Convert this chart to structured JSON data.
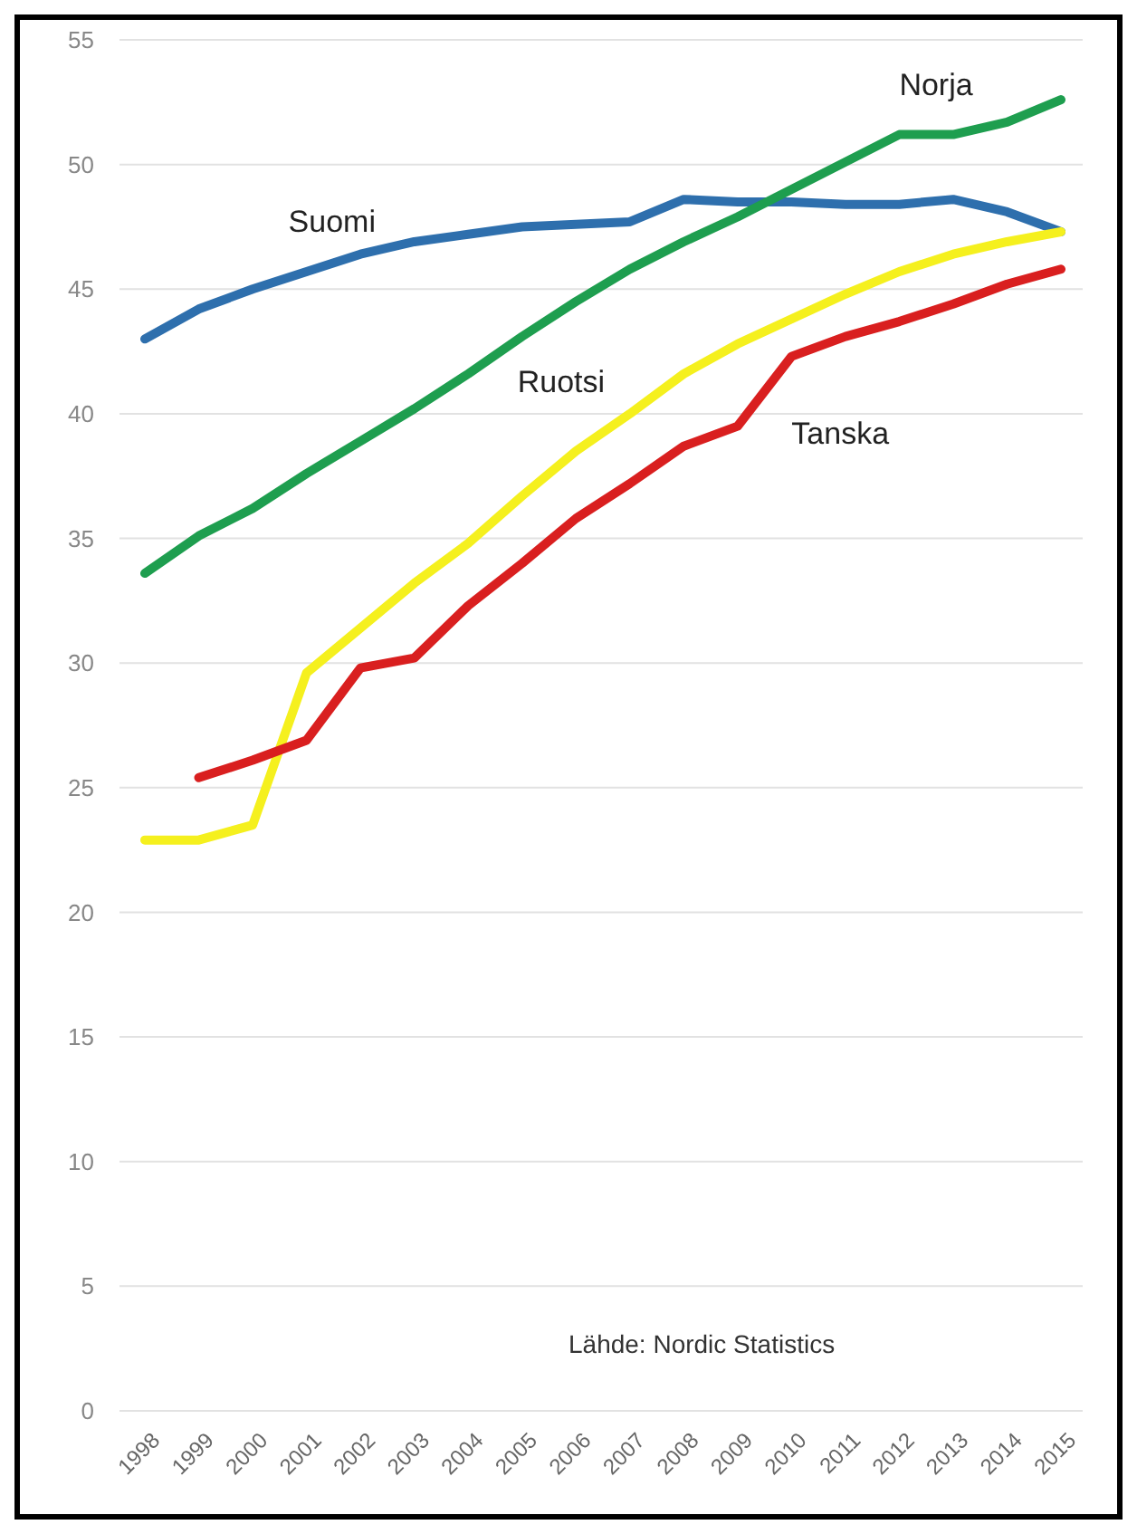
{
  "chart_data": {
    "type": "line",
    "categories": [
      "1998",
      "1999",
      "2000",
      "2001",
      "2002",
      "2003",
      "2004",
      "2005",
      "2006",
      "2007",
      "2008",
      "2009",
      "2010",
      "2011",
      "2012",
      "2013",
      "2014",
      "2015"
    ],
    "series": [
      {
        "name": "Suomi",
        "color": "#2e6fad",
        "values": [
          43.0,
          44.2,
          45.0,
          45.7,
          46.4,
          46.9,
          47.2,
          47.5,
          47.6,
          47.7,
          48.6,
          48.5,
          48.5,
          48.4,
          48.4,
          48.6,
          48.1,
          47.3
        ]
      },
      {
        "name": "Norja",
        "color": "#1e9e4f",
        "values": [
          33.6,
          35.1,
          36.2,
          37.6,
          38.9,
          40.2,
          41.6,
          43.1,
          44.5,
          45.8,
          46.9,
          47.9,
          49.0,
          50.1,
          51.2,
          51.2,
          51.7,
          52.6
        ]
      },
      {
        "name": "Ruotsi",
        "color": "#f5f01e",
        "values": [
          22.9,
          22.9,
          23.5,
          29.6,
          31.4,
          33.2,
          34.8,
          36.7,
          38.5,
          40.0,
          41.6,
          42.8,
          43.8,
          44.8,
          45.7,
          46.4,
          46.9,
          47.3
        ]
      },
      {
        "name": "Tanska",
        "color": "#d91f1f",
        "values": [
          null,
          25.4,
          26.1,
          26.9,
          29.8,
          30.2,
          32.3,
          34.0,
          35.8,
          37.2,
          38.7,
          39.5,
          42.3,
          43.1,
          43.7,
          44.4,
          45.2,
          45.8
        ]
      }
    ],
    "ylim": [
      0,
      55
    ],
    "yticks": [
      0,
      5,
      10,
      15,
      20,
      25,
      30,
      35,
      40,
      45,
      50,
      55
    ],
    "grid": "y",
    "annotations": [
      "Lähde: Nordic Statistics"
    ]
  }
}
